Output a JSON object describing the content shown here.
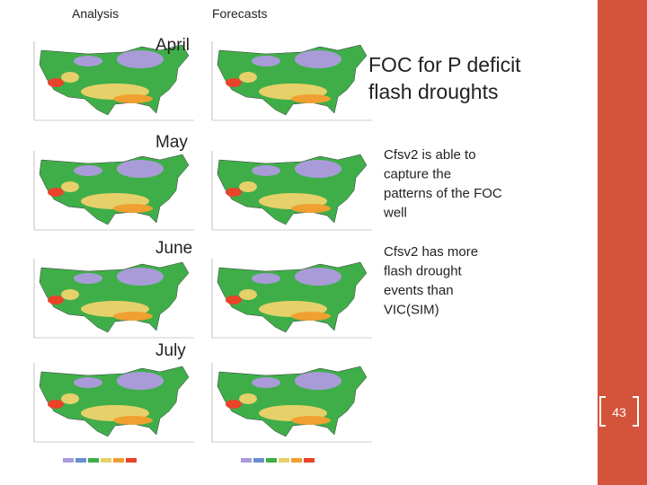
{
  "header": {
    "analysis": "Analysis",
    "forecasts": "Forecasts"
  },
  "months": [
    "April",
    "May",
    "June",
    "July"
  ],
  "title_lines": [
    "FOC for P deficit",
    "flash droughts"
  ],
  "bullets": [
    {
      "lines": [
        "Cfsv2 is able to",
        "capture the",
        "patterns of the FOC",
        "well"
      ]
    },
    {
      "lines": [
        "Cfsv2 has more",
        "flash drought",
        "events than",
        "VIC(SIM)"
      ]
    }
  ],
  "page_number": "43"
}
